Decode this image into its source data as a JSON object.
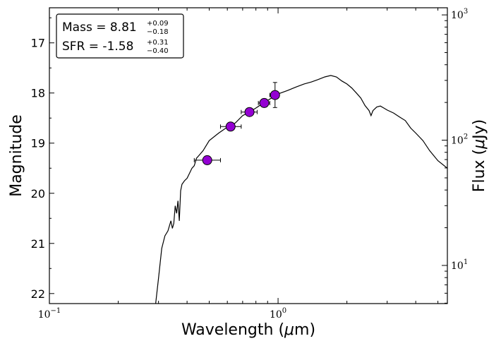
{
  "chart_data": {
    "type": "scatter",
    "title": "",
    "xlabel": "Wavelength (μm)",
    "ylabel_left": "Magnitude",
    "ylabel_right": "Flux (μJy)",
    "x_scale": "log",
    "xlim": [
      0.1,
      5.5
    ],
    "ylim_left": [
      22.2,
      16.3
    ],
    "right_scale": "log",
    "ylim_right": [
      4.96,
      1140
    ],
    "grid": false,
    "x_ticks": [
      {
        "value": 0.1,
        "base": "10",
        "exp": "−1"
      },
      {
        "value": 1,
        "base": "10",
        "exp": "0"
      }
    ],
    "y_ticks_left": [
      {
        "value": 17,
        "label": "17"
      },
      {
        "value": 18,
        "label": "18"
      },
      {
        "value": 19,
        "label": "19"
      },
      {
        "value": 20,
        "label": "20"
      },
      {
        "value": 21,
        "label": "21"
      },
      {
        "value": 22,
        "label": "22"
      }
    ],
    "y_ticks_right": [
      {
        "value": 1000,
        "base": "10",
        "exp": "3"
      },
      {
        "value": 100,
        "base": "10",
        "exp": "2"
      },
      {
        "value": 10,
        "base": "10",
        "exp": "1"
      }
    ],
    "annotation": {
      "mass_label": "Mass = 8.81",
      "mass_up": "+0.09",
      "mass_down": "−0.18",
      "sfr_label": "SFR = -1.58",
      "sfr_up": "+0.31",
      "sfr_down": "−0.40"
    },
    "points_color": "#9400d3",
    "points": [
      {
        "x": 0.49,
        "xlo": 0.43,
        "xhi": 0.56,
        "mag": 19.34,
        "err": 0.08
      },
      {
        "x": 0.62,
        "xlo": 0.56,
        "xhi": 0.69,
        "mag": 18.67,
        "err": 0.06
      },
      {
        "x": 0.75,
        "xlo": 0.69,
        "xhi": 0.81,
        "mag": 18.38,
        "err": 0.06
      },
      {
        "x": 0.87,
        "xlo": 0.82,
        "xhi": 0.92,
        "mag": 18.2,
        "err": 0.08
      },
      {
        "x": 0.97,
        "xlo": 0.92,
        "xhi": 1.01,
        "mag": 18.04,
        "err": 0.25
      }
    ],
    "model_curve": [
      [
        0.29,
        22.3
      ],
      [
        0.3,
        21.7
      ],
      [
        0.31,
        21.1
      ],
      [
        0.32,
        20.85
      ],
      [
        0.33,
        20.75
      ],
      [
        0.34,
        20.55
      ],
      [
        0.345,
        20.7
      ],
      [
        0.35,
        20.6
      ],
      [
        0.355,
        20.25
      ],
      [
        0.36,
        20.4
      ],
      [
        0.365,
        20.15
      ],
      [
        0.37,
        20.55
      ],
      [
        0.375,
        19.95
      ],
      [
        0.38,
        19.82
      ],
      [
        0.39,
        19.75
      ],
      [
        0.4,
        19.7
      ],
      [
        0.41,
        19.6
      ],
      [
        0.42,
        19.5
      ],
      [
        0.43,
        19.45
      ],
      [
        0.44,
        19.3
      ],
      [
        0.45,
        19.25
      ],
      [
        0.47,
        19.15
      ],
      [
        0.5,
        18.95
      ],
      [
        0.55,
        18.8
      ],
      [
        0.6,
        18.68
      ],
      [
        0.65,
        18.6
      ],
      [
        0.7,
        18.45
      ],
      [
        0.75,
        18.38
      ],
      [
        0.8,
        18.3
      ],
      [
        0.85,
        18.22
      ],
      [
        0.9,
        18.15
      ],
      [
        0.95,
        18.08
      ],
      [
        1.0,
        18.02
      ],
      [
        1.1,
        17.95
      ],
      [
        1.2,
        17.88
      ],
      [
        1.3,
        17.82
      ],
      [
        1.4,
        17.78
      ],
      [
        1.5,
        17.73
      ],
      [
        1.6,
        17.68
      ],
      [
        1.7,
        17.65
      ],
      [
        1.8,
        17.68
      ],
      [
        1.9,
        17.76
      ],
      [
        2.0,
        17.82
      ],
      [
        2.1,
        17.9
      ],
      [
        2.2,
        18.0
      ],
      [
        2.3,
        18.1
      ],
      [
        2.4,
        18.25
      ],
      [
        2.5,
        18.35
      ],
      [
        2.55,
        18.45
      ],
      [
        2.6,
        18.35
      ],
      [
        2.7,
        18.28
      ],
      [
        2.8,
        18.26
      ],
      [
        2.9,
        18.3
      ],
      [
        3.0,
        18.34
      ],
      [
        3.2,
        18.4
      ],
      [
        3.4,
        18.48
      ],
      [
        3.6,
        18.55
      ],
      [
        3.8,
        18.7
      ],
      [
        4.0,
        18.8
      ],
      [
        4.3,
        18.95
      ],
      [
        4.6,
        19.15
      ],
      [
        5.0,
        19.35
      ],
      [
        5.5,
        19.5
      ]
    ]
  }
}
